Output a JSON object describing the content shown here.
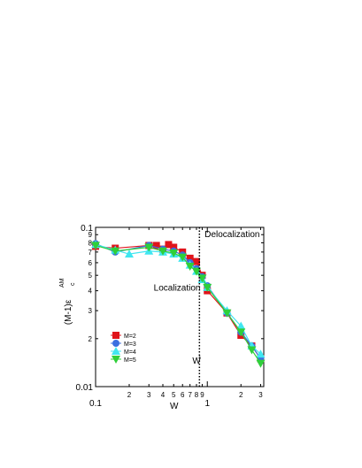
{
  "chart_data": {
    "type": "line",
    "xscale": "log",
    "yscale": "log",
    "xlim": [
      0.1,
      3.2
    ],
    "ylim": [
      0.01,
      0.1
    ],
    "xlabel": "W",
    "ylabel": "(M-1)ε",
    "ylabel_sub": "c",
    "ylabel_sup": "AM",
    "x_ticks_major": [
      {
        "value": 0.1,
        "label": "0.1"
      },
      {
        "value": 1,
        "label": "1"
      }
    ],
    "x_ticks_minor": [
      {
        "value": 0.2,
        "label": "2"
      },
      {
        "value": 0.3,
        "label": "3"
      },
      {
        "value": 0.4,
        "label": "4"
      },
      {
        "value": 0.5,
        "label": "5"
      },
      {
        "value": 0.6,
        "label": "6"
      },
      {
        "value": 0.7,
        "label": "7"
      },
      {
        "value": 0.8,
        "label": "8"
      },
      {
        "value": 0.9,
        "label": "9"
      },
      {
        "value": 2,
        "label": "2"
      },
      {
        "value": 3,
        "label": "3"
      }
    ],
    "y_ticks_major": [
      {
        "value": 0.01,
        "label": "0.01"
      },
      {
        "value": 0.1,
        "label": "0.1"
      }
    ],
    "y_ticks_minor": [
      {
        "value": 0.02,
        "label": "2"
      },
      {
        "value": 0.03,
        "label": "3"
      },
      {
        "value": 0.04,
        "label": "4"
      },
      {
        "value": 0.05,
        "label": "5"
      },
      {
        "value": 0.06,
        "label": "6"
      },
      {
        "value": 0.07,
        "label": "7"
      },
      {
        "value": 0.08,
        "label": "8"
      },
      {
        "value": 0.09,
        "label": "9"
      }
    ],
    "series": [
      {
        "name": "M=2",
        "color": "#e0141b",
        "marker": "square",
        "x": [
          0.1,
          0.15,
          0.3,
          0.35,
          0.4,
          0.45,
          0.5,
          0.6,
          0.7,
          0.8,
          0.9,
          1.0,
          1.5,
          2.0,
          2.5,
          3.0
        ],
        "y": [
          0.076,
          0.074,
          0.077,
          0.077,
          0.073,
          0.078,
          0.075,
          0.07,
          0.064,
          0.061,
          0.05,
          0.04,
          0.029,
          0.021,
          0.018,
          0.015
        ]
      },
      {
        "name": "M=3",
        "color": "#3b6fe0",
        "marker": "circle",
        "x": [
          0.1,
          0.15,
          0.3,
          0.4,
          0.5,
          0.6,
          0.7,
          0.8,
          0.9,
          1.0,
          1.5,
          2.0,
          2.5,
          3.0
        ],
        "y": [
          0.079,
          0.07,
          0.077,
          0.073,
          0.071,
          0.067,
          0.06,
          0.055,
          0.049,
          0.043,
          0.029,
          0.022,
          0.018,
          0.015
        ]
      },
      {
        "name": "M=4",
        "color": "#40e6f0",
        "marker": "triangle-up",
        "x": [
          0.1,
          0.15,
          0.2,
          0.3,
          0.4,
          0.5,
          0.6,
          0.7,
          0.8,
          0.9,
          1.0,
          1.5,
          2.0,
          2.5,
          3.0
        ],
        "y": [
          0.078,
          0.072,
          0.068,
          0.071,
          0.07,
          0.068,
          0.064,
          0.058,
          0.053,
          0.047,
          0.042,
          0.03,
          0.024,
          0.018,
          0.016
        ]
      },
      {
        "name": "M=5",
        "color": "#2fcf3a",
        "marker": "triangle-down",
        "x": [
          0.1,
          0.15,
          0.3,
          0.4,
          0.5,
          0.6,
          0.7,
          0.8,
          0.9,
          1.0,
          1.5,
          2.0,
          2.5,
          3.0
        ],
        "y": [
          0.077,
          0.071,
          0.075,
          0.071,
          0.069,
          0.065,
          0.057,
          0.053,
          0.048,
          0.042,
          0.029,
          0.022,
          0.017,
          0.014
        ]
      }
    ],
    "vline": {
      "x": 0.85,
      "label": "W",
      "label_sup": "*",
      "style": "dotted"
    },
    "annotations": [
      {
        "text": "Delocalization",
        "x": 1.0,
        "y": 0.087
      },
      {
        "text": "Localization",
        "x": 0.35,
        "y": 0.04
      }
    ],
    "legend": {
      "placement": "lower-left",
      "entries": [
        "M=2",
        "M=3",
        "M=4",
        "M=5"
      ]
    }
  }
}
